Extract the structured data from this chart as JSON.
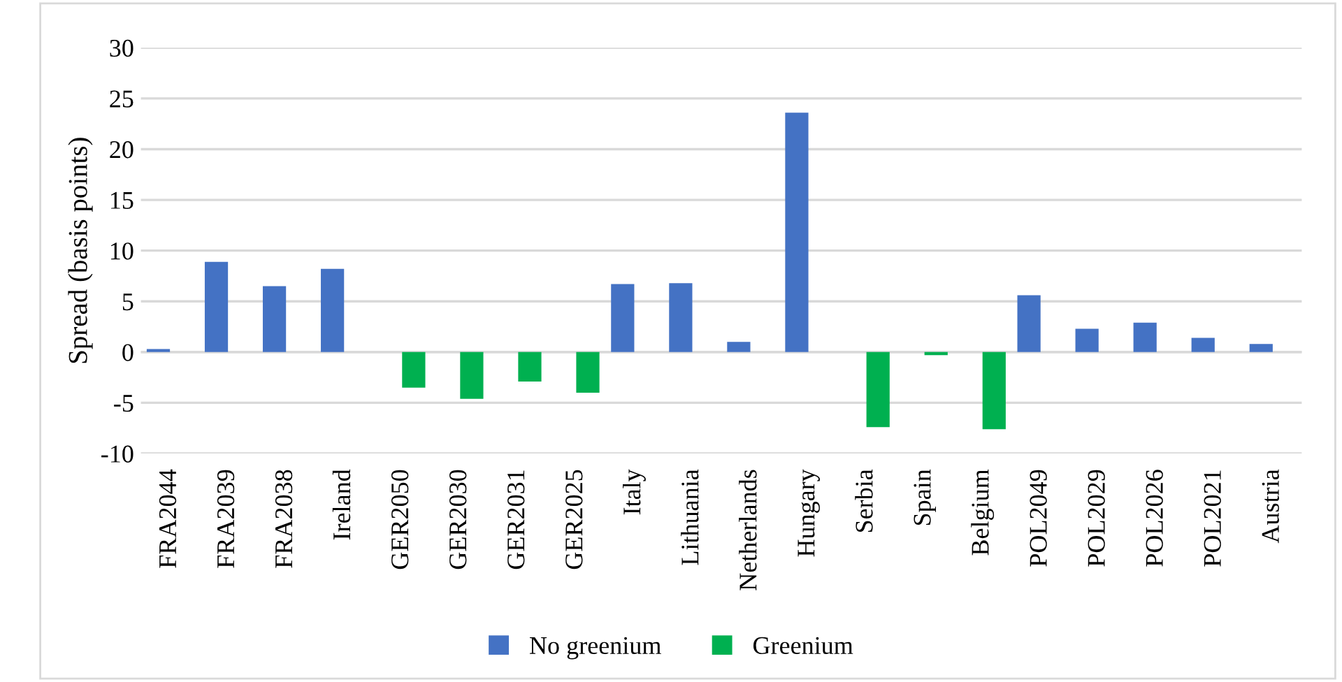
{
  "chart_data": {
    "type": "bar",
    "ylabel": "Spread (basis points)",
    "categories": [
      "FRA2044",
      "FRA2039",
      "FRA2038",
      "Ireland",
      "GER2050",
      "GER2030",
      "GER2031",
      "GER2025",
      "Italy",
      "Lithuania",
      "Netherlands",
      "Hungary",
      "Serbia",
      "Spain",
      "Belgium",
      "POL2049",
      "POL2029",
      "POL2026",
      "POL2021",
      "Austria"
    ],
    "series": [
      {
        "name": "No greenium",
        "color": "#4472c4",
        "values": [
          0.3,
          8.9,
          6.5,
          8.2,
          null,
          null,
          null,
          null,
          6.7,
          6.8,
          1.0,
          23.6,
          null,
          null,
          null,
          5.6,
          2.3,
          2.9,
          1.4,
          0.8
        ]
      },
      {
        "name": "Greenium",
        "color": "#00b050",
        "values": [
          null,
          null,
          null,
          null,
          -3.5,
          -4.6,
          -2.9,
          -4.0,
          null,
          null,
          null,
          null,
          -7.4,
          -0.3,
          -7.6,
          null,
          null,
          null,
          null,
          null
        ]
      }
    ],
    "ylim": [
      -10,
      30
    ],
    "yticks": [
      -10,
      -5,
      0,
      5,
      10,
      15,
      20,
      25,
      30
    ],
    "grid": "y",
    "legend": "bottom"
  }
}
